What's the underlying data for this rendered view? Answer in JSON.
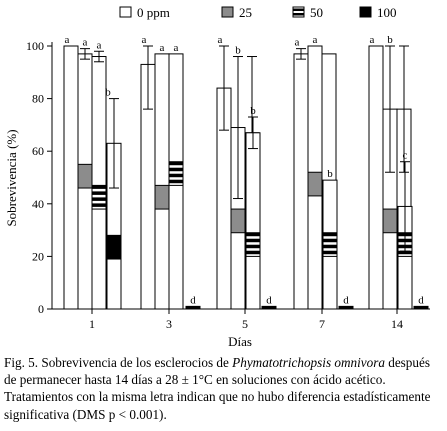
{
  "chart_data": {
    "type": "bar",
    "ylabel": "Sobrevivencia (%)",
    "xlabel": "Días",
    "ylim": [
      0,
      100
    ],
    "yticks": [
      0,
      20,
      40,
      60,
      80,
      100
    ],
    "categories": [
      "1",
      "3",
      "5",
      "7",
      "14"
    ],
    "legend_position": "top",
    "series": [
      {
        "name": "0 ppm",
        "fill": "#ffffff",
        "values": [
          100,
          93,
          84,
          97,
          100
        ],
        "errors": [
          0,
          17,
          16,
          2,
          0
        ],
        "letters": [
          "a",
          "a",
          "a",
          "a",
          "a"
        ]
      },
      {
        "name": "25",
        "fill": "#8c8c8c",
        "values": [
          55,
          47,
          38,
          52,
          38
        ],
        "errors": [
          0,
          0,
          0,
          0,
          0
        ],
        "letters": [
          "",
          "",
          "",
          "",
          ""
        ]
      },
      {
        "name": "50",
        "fill": "stripes",
        "values": [
          47,
          56,
          29,
          29,
          29
        ],
        "errors": [
          0,
          0,
          0,
          0,
          0
        ],
        "letters": [
          "",
          "",
          "",
          "",
          ""
        ]
      },
      {
        "name": "100",
        "fill": "#000000",
        "values": [
          28,
          1,
          1,
          1,
          1
        ],
        "errors": [
          0,
          0,
          0,
          0,
          0
        ],
        "letters": [
          "",
          "d",
          "d",
          "d",
          "d"
        ]
      }
    ],
    "overlay": {
      "values": [
        63,
        97,
        67,
        49,
        39
      ],
      "errors": [
        17,
        0,
        6,
        0,
        17
      ],
      "letters": [
        "b",
        "a",
        "b",
        "b",
        "c"
      ]
    },
    "tall": {
      "values": [
        97,
        97,
        69,
        100,
        76
      ],
      "errors": [
        2,
        0,
        27,
        0,
        24
      ],
      "letters": [
        "a",
        "a",
        "b",
        "a",
        "b"
      ]
    },
    "third": {
      "values": [
        96,
        97,
        67,
        97,
        76
      ],
      "errors": [
        2,
        0,
        29,
        0,
        24
      ],
      "letters": [
        "a",
        "a",
        "",
        "",
        ""
      ]
    }
  },
  "caption": {
    "prefix": "Fig. 5. Sobrevivencia de los esclerocios de ",
    "species": "Phymatotrichopsis omnivora",
    "rest": " después de permanecer hasta 14 días  a 28 ± 1°C en soluciones con ácido acético. Tratamientos con la misma letra indican que no hubo diferencia estadísticamente significativa (DMS p < 0.001)."
  }
}
